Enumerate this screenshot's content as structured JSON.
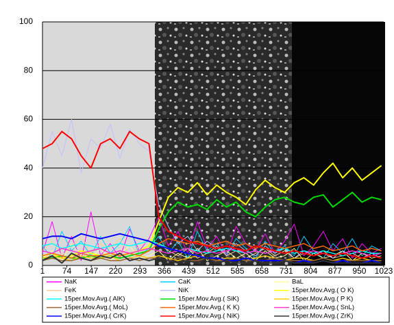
{
  "chart_data": {
    "type": "line",
    "x": [
      1,
      30,
      59,
      88,
      117,
      146,
      175,
      204,
      233,
      262,
      291,
      320,
      349,
      378,
      407,
      436,
      465,
      494,
      523,
      552,
      581,
      610,
      639,
      668,
      697,
      726,
      755,
      784,
      813,
      842,
      871,
      900,
      929,
      958,
      987,
      1016
    ],
    "xlim": [
      1,
      1023
    ],
    "xticks": [
      1,
      74,
      147,
      220,
      293,
      366,
      439,
      512,
      585,
      658,
      731,
      804,
      877,
      950,
      1023
    ],
    "ylim": [
      0,
      100
    ],
    "yticks": [
      0,
      20,
      40,
      60,
      80,
      100
    ],
    "grid": true,
    "series": [
      {
        "name": "NaK",
        "color": "#ff00ff",
        "width": 1,
        "values": [
          5,
          18,
          3,
          12,
          2,
          22,
          4,
          9,
          3,
          15,
          6,
          11,
          20,
          8,
          14,
          5,
          18,
          7,
          12,
          4,
          16,
          9,
          6,
          13,
          5,
          10,
          17,
          4,
          8,
          14,
          6,
          11,
          3,
          9,
          5,
          7
        ]
      },
      {
        "name": "CaK",
        "color": "#00ccff",
        "width": 1,
        "values": [
          8,
          3,
          14,
          6,
          10,
          4,
          12,
          5,
          9,
          16,
          4,
          7,
          12,
          5,
          10,
          3,
          14,
          6,
          9,
          4,
          11,
          7,
          3,
          10,
          5,
          8,
          4,
          12,
          6,
          3,
          9,
          5,
          11,
          4,
          8,
          6
        ]
      },
      {
        "name": "BaL",
        "color": "#ffff99",
        "width": 1,
        "values": [
          3,
          6,
          2,
          9,
          4,
          3,
          7,
          2,
          5,
          8,
          3,
          4,
          6,
          2,
          5,
          3,
          7,
          2,
          4,
          6,
          3,
          5,
          2,
          6,
          3,
          4,
          7,
          2,
          5,
          3,
          4,
          6,
          2,
          5,
          3,
          4
        ]
      },
      {
        "name": "FeK",
        "color": "#ffcc99",
        "width": 1,
        "values": [
          6,
          10,
          4,
          8,
          12,
          5,
          9,
          7,
          11,
          4,
          8,
          10,
          9,
          6,
          4,
          7,
          3,
          5,
          8,
          4,
          6,
          3,
          5,
          7,
          4,
          6,
          3,
          5,
          4,
          6,
          3,
          4,
          5,
          3,
          4,
          3
        ]
      },
      {
        "name": "NiK",
        "color": "#c0c0ff",
        "width": 1,
        "values": [
          40,
          55,
          45,
          60,
          38,
          52,
          48,
          58,
          44,
          56,
          50,
          47,
          25,
          16,
          9,
          12,
          6,
          10,
          7,
          5,
          9,
          6,
          4,
          8,
          5,
          7,
          3,
          6,
          4,
          5,
          3,
          6,
          4,
          3,
          5,
          3
        ]
      },
      {
        "name": "15per.Mov.Avg.( O K)",
        "color": "#ffff00",
        "width": 2,
        "values": [
          4,
          5,
          3,
          4,
          6,
          5,
          4,
          5,
          4,
          5,
          6,
          8,
          18,
          28,
          32,
          30,
          34,
          29,
          33,
          30,
          28,
          25,
          31,
          35,
          32,
          30,
          34,
          36,
          33,
          38,
          42,
          36,
          40,
          35,
          38,
          41
        ]
      },
      {
        "name": "15per.Mov.Avg.( AlK)",
        "color": "#00ffff",
        "width": 1.5,
        "values": [
          8,
          9,
          7,
          8,
          9,
          8,
          7,
          8,
          9,
          8,
          9,
          10,
          9,
          7,
          6,
          7,
          6,
          5,
          6,
          7,
          6,
          5,
          6,
          5,
          6,
          7,
          5,
          6,
          5,
          6,
          5,
          4,
          5,
          6,
          5,
          5
        ]
      },
      {
        "name": "15per.Mov.Avg.( SiK)",
        "color": "#00dd00",
        "width": 2,
        "values": [
          3,
          3,
          4,
          3,
          3,
          4,
          3,
          4,
          3,
          4,
          5,
          6,
          15,
          22,
          26,
          24,
          25,
          23,
          27,
          24,
          26,
          22,
          20,
          24,
          27,
          28,
          26,
          25,
          28,
          29,
          24,
          27,
          30,
          26,
          28,
          27
        ]
      },
      {
        "name": "15per.Mov.Avg.( P K)",
        "color": "#ffcc00",
        "width": 1.5,
        "values": [
          3,
          4,
          3,
          2,
          4,
          3,
          3,
          4,
          2,
          3,
          4,
          3,
          4,
          3,
          2,
          3,
          4,
          3,
          2,
          3,
          3,
          2,
          3,
          4,
          3,
          2,
          3,
          3,
          2,
          3,
          2,
          3,
          2,
          3,
          2,
          2
        ]
      },
      {
        "name": "15per.Mov.Avg.( MoL)",
        "color": "#996633",
        "width": 1.5,
        "values": [
          2,
          3,
          2,
          2,
          3,
          2,
          3,
          2,
          2,
          3,
          2,
          3,
          3,
          2,
          3,
          2,
          2,
          3,
          2,
          2,
          3,
          2,
          2,
          2,
          3,
          2,
          2,
          2,
          2,
          3,
          2,
          2,
          2,
          2,
          2,
          2
        ]
      },
      {
        "name": "15per.Mov.Avg.( K K)",
        "color": "#ff6600",
        "width": 1.5,
        "values": [
          4,
          5,
          4,
          3,
          5,
          4,
          4,
          5,
          4,
          5,
          4,
          6,
          9,
          11,
          10,
          9,
          10,
          8,
          9,
          10,
          8,
          9,
          7,
          9,
          8,
          7,
          8,
          9,
          7,
          8,
          6,
          7,
          8,
          6,
          7,
          6
        ]
      },
      {
        "name": "15per.Mov.Avg.( SnL)",
        "color": "#ff33cc",
        "width": 1.5,
        "values": [
          6,
          5,
          7,
          6,
          5,
          6,
          7,
          5,
          6,
          5,
          6,
          7,
          6,
          5,
          6,
          7,
          5,
          6,
          5,
          6,
          7,
          5,
          6,
          5,
          6,
          5,
          6,
          5,
          6,
          5,
          4,
          5,
          6,
          5,
          4,
          5
        ]
      },
      {
        "name": "15per.Mov.Avg.( CrK)",
        "color": "#0000ff",
        "width": 2,
        "values": [
          11,
          12,
          12,
          11,
          13,
          12,
          11,
          12,
          13,
          12,
          11,
          10,
          8,
          7,
          6,
          5,
          4,
          3,
          3,
          2,
          2,
          3,
          2,
          2,
          2,
          2,
          1,
          2,
          1,
          2,
          1,
          2,
          1,
          1,
          2,
          1
        ]
      },
      {
        "name": "15per.Mov.Avg.( NiK)",
        "color": "#ff0000",
        "width": 2,
        "values": [
          48,
          50,
          55,
          52,
          45,
          40,
          50,
          52,
          48,
          55,
          52,
          50,
          20,
          14,
          12,
          10,
          9,
          8,
          7,
          8,
          7,
          6,
          8,
          7,
          6,
          5,
          6,
          5,
          4,
          5,
          4,
          5,
          4,
          3,
          4,
          3
        ]
      },
      {
        "name": "15per.Mov.Avg.( ZrK)",
        "color": "#333333",
        "width": 2,
        "values": [
          2,
          4,
          1,
          5,
          3,
          2,
          4,
          3,
          5,
          2,
          3,
          2,
          3,
          2,
          1,
          2,
          1,
          3,
          1,
          2,
          1,
          1,
          2,
          1,
          1,
          2,
          1,
          1,
          1,
          2,
          1,
          1,
          1,
          1,
          1,
          1
        ]
      }
    ]
  }
}
